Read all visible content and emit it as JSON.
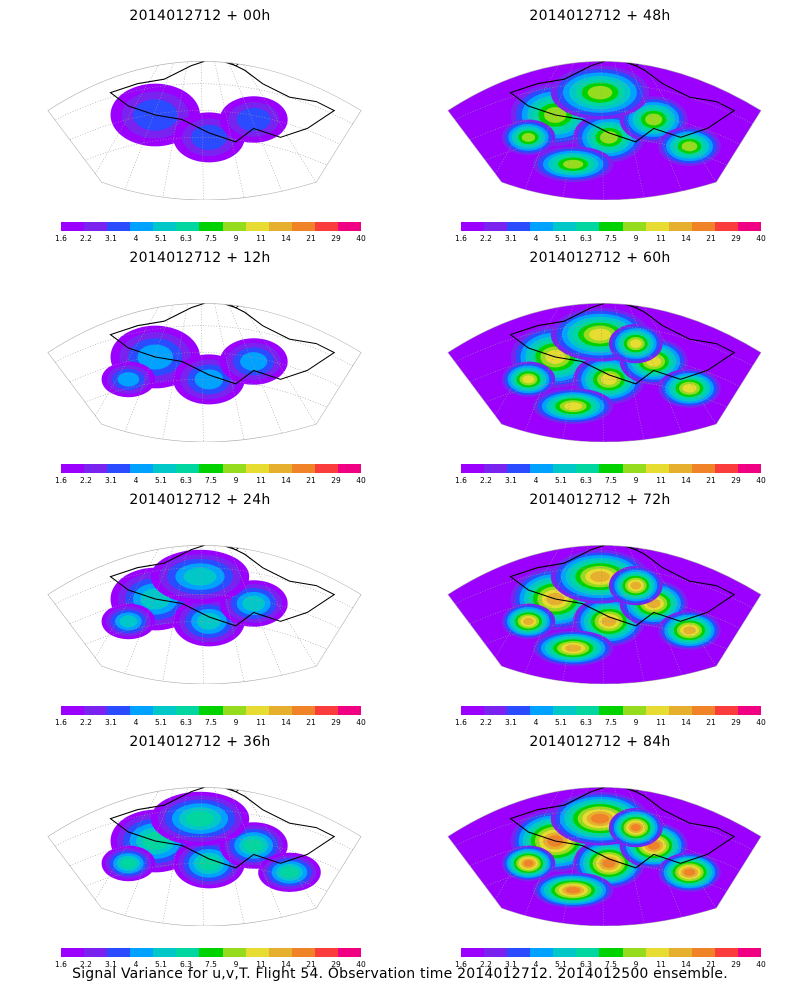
{
  "caption": "Signal Variance for u,v,T. Flight 54. Observation time 2014012712. 2014012500 ensemble.",
  "colorbar": {
    "colors": [
      "#9b00ff",
      "#7a22f0",
      "#2a4bff",
      "#00a2ff",
      "#00c8c8",
      "#00d7a0",
      "#00d200",
      "#96dc1e",
      "#e6dc32",
      "#e6af2d",
      "#f08228",
      "#fa3c3c",
      "#f00082"
    ],
    "labels": [
      "1.6",
      "2.2",
      "3.1",
      "4",
      "5.1",
      "6.3",
      "7.5",
      "9",
      "11",
      "14",
      "21",
      "29",
      "40"
    ]
  },
  "panels": [
    {
      "title": "2014012712 + 00h",
      "level": 1
    },
    {
      "title": "2014012712 + 48h",
      "level": 5
    },
    {
      "title": "2014012712 + 12h",
      "level": 2
    },
    {
      "title": "2014012712 + 60h",
      "level": 6
    },
    {
      "title": "2014012712 + 24h",
      "level": 3
    },
    {
      "title": "2014012712 + 72h",
      "level": 7
    },
    {
      "title": "2014012712 + 36h",
      "level": 4
    },
    {
      "title": "2014012712 + 84h",
      "level": 8
    }
  ]
}
